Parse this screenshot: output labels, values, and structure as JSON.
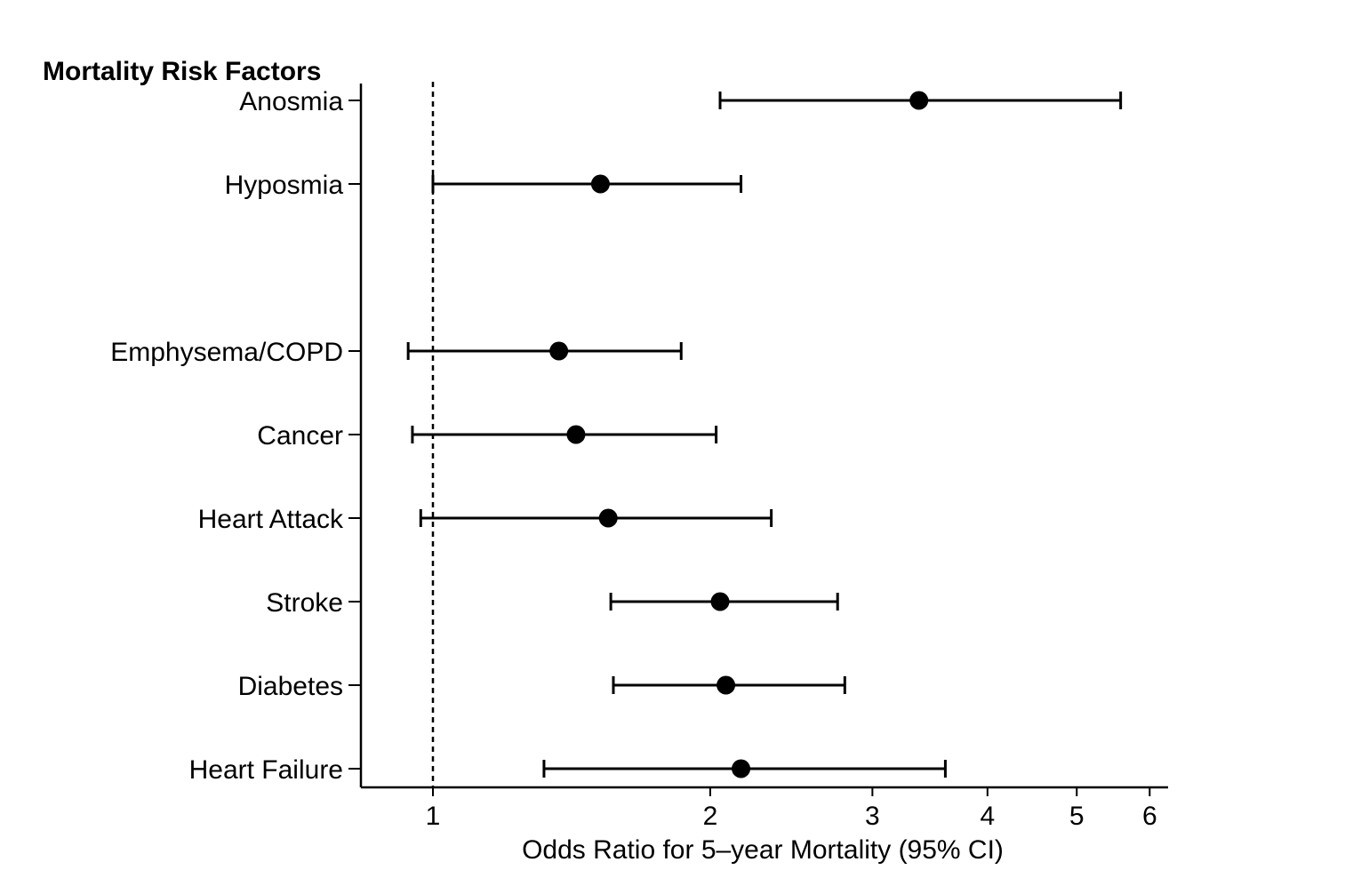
{
  "chart_data": {
    "type": "forest",
    "title": "Mortality Risk Factors",
    "xlabel": "Odds Ratio for 5–year Mortality (95% CI)",
    "ylabel": "",
    "x_scale": "log",
    "xlim": [
      0.8,
      6.3
    ],
    "x_ticks": [
      1,
      2,
      3,
      4,
      5,
      6
    ],
    "reference_line": 1,
    "grid": false,
    "legend": "none",
    "colors": {
      "marker": "#000000",
      "line": "#000000",
      "axis": "#000000",
      "background": "#ffffff"
    },
    "rows": [
      {
        "label": "Anosmia",
        "slot": 0,
        "or": 3.37,
        "lower": 2.05,
        "upper": 5.58
      },
      {
        "label": "Hyposmia",
        "slot": 1,
        "or": 1.52,
        "lower": 1.0,
        "upper": 2.16
      },
      {
        "label": "Emphysema/COPD",
        "slot": 3,
        "or": 1.37,
        "lower": 0.94,
        "upper": 1.86
      },
      {
        "label": "Cancer",
        "slot": 4,
        "or": 1.43,
        "lower": 0.95,
        "upper": 2.03
      },
      {
        "label": "Heart Attack",
        "slot": 5,
        "or": 1.55,
        "lower": 0.97,
        "upper": 2.33
      },
      {
        "label": "Stroke",
        "slot": 6,
        "or": 2.05,
        "lower": 1.56,
        "upper": 2.75
      },
      {
        "label": "Diabetes",
        "slot": 7,
        "or": 2.08,
        "lower": 1.57,
        "upper": 2.8
      },
      {
        "label": "Heart Failure",
        "slot": 8,
        "or": 2.16,
        "lower": 1.32,
        "upper": 3.6
      }
    ]
  }
}
